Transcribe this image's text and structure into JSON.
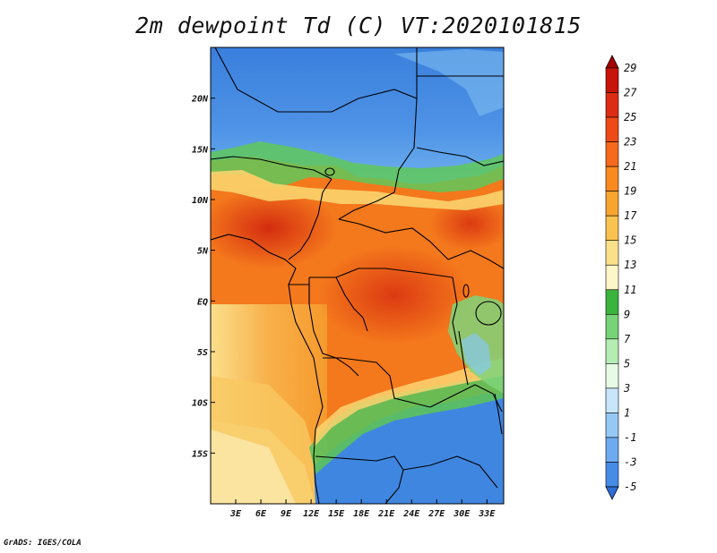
{
  "title": "2m dewpoint Td (C) VT:2020101815",
  "footer": "GrADS: IGES/COLA",
  "map": {
    "type": "heatmap",
    "variable": "2m dewpoint",
    "unit": "C",
    "valid_time": "2020101815",
    "region": "Central Africa",
    "lon_range": [
      0,
      35
    ],
    "lat_range": [
      -20,
      25
    ],
    "lon_ticks": [
      "3E",
      "6E",
      "9E",
      "12E",
      "15E",
      "18E",
      "21E",
      "24E",
      "27E",
      "30E",
      "33E"
    ],
    "lon_tick_values": [
      3,
      6,
      9,
      12,
      15,
      18,
      21,
      24,
      27,
      30,
      33
    ],
    "lat_ticks": [
      "20N",
      "15N",
      "10N",
      "5N",
      "EQ",
      "5S",
      "10S",
      "15S"
    ],
    "lat_tick_values": [
      20,
      15,
      10,
      5,
      0,
      -5,
      -10,
      -15
    ]
  },
  "colorbar": {
    "labels": [
      "29",
      "27",
      "25",
      "23",
      "21",
      "19",
      "17",
      "15",
      "13",
      "11",
      "9",
      "7",
      "5",
      "3",
      "1",
      "-1",
      "-3",
      "-5"
    ],
    "colors": [
      "#a50000",
      "#c8140a",
      "#dc2d14",
      "#ee4a18",
      "#f56a1c",
      "#f88a20",
      "#f8a530",
      "#fac250",
      "#fbe08a",
      "#fdf6c8",
      "#3cb43c",
      "#78d278",
      "#b4ecb4",
      "#e6fae6",
      "#c8e6fa",
      "#96c8f5",
      "#6eaaf0",
      "#468ce6",
      "#2d6ed7"
    ]
  }
}
